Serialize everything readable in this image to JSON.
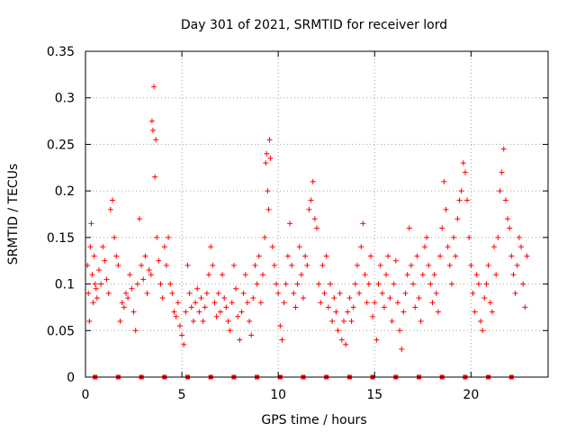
{
  "chart_data": {
    "type": "scatter",
    "title": "Day 301 of 2021, SRMTID for receiver lord",
    "xlabel": "GPS time / hours",
    "ylabel": "SRMTID / TECUs",
    "xlim": [
      0,
      24
    ],
    "ylim": [
      0,
      0.35
    ],
    "x_ticks": [
      0,
      5,
      10,
      15,
      20
    ],
    "x_tick_labels": [
      "0",
      "5",
      "10",
      "15",
      "20"
    ],
    "y_ticks": [
      0,
      0.05,
      0.1,
      0.15,
      0.2,
      0.25,
      0.3,
      0.35
    ],
    "y_tick_labels": [
      "0",
      "0.05",
      "0.1",
      "0.15",
      "0.2",
      "0.25",
      "0.3",
      "0.35"
    ],
    "grid": true,
    "marker": "+",
    "color": "#ff0000",
    "zero_markers_x": [
      0.5,
      1.7,
      2.9,
      4.1,
      5.3,
      6.5,
      7.7,
      8.9,
      10.1,
      11.3,
      12.5,
      13.7,
      14.9,
      16.1,
      17.3,
      18.5,
      19.7,
      20.9,
      22.1
    ],
    "series": [
      {
        "name": "SRMTID",
        "points": [
          [
            0.1,
            0.12
          ],
          [
            0.15,
            0.09
          ],
          [
            0.2,
            0.06
          ],
          [
            0.25,
            0.14
          ],
          [
            0.3,
            0.165
          ],
          [
            0.35,
            0.11
          ],
          [
            0.4,
            0.08
          ],
          [
            0.45,
            0.13
          ],
          [
            0.5,
            0.1
          ],
          [
            0.55,
            0.095
          ],
          [
            0.6,
            0.085
          ],
          [
            0.7,
            0.115
          ],
          [
            0.8,
            0.1
          ],
          [
            0.9,
            0.14
          ],
          [
            1.0,
            0.125
          ],
          [
            1.1,
            0.105
          ],
          [
            1.2,
            0.09
          ],
          [
            1.3,
            0.18
          ],
          [
            1.4,
            0.19
          ],
          [
            1.5,
            0.15
          ],
          [
            1.6,
            0.13
          ],
          [
            1.7,
            0.12
          ],
          [
            1.8,
            0.06
          ],
          [
            1.9,
            0.08
          ],
          [
            2.0,
            0.075
          ],
          [
            2.1,
            0.09
          ],
          [
            2.2,
            0.085
          ],
          [
            2.3,
            0.11
          ],
          [
            2.4,
            0.095
          ],
          [
            2.5,
            0.07
          ],
          [
            2.6,
            0.05
          ],
          [
            2.7,
            0.1
          ],
          [
            2.8,
            0.17
          ],
          [
            2.9,
            0.12
          ],
          [
            3.0,
            0.105
          ],
          [
            3.1,
            0.13
          ],
          [
            3.2,
            0.09
          ],
          [
            3.3,
            0.115
          ],
          [
            3.4,
            0.11
          ],
          [
            3.45,
            0.275
          ],
          [
            3.5,
            0.265
          ],
          [
            3.55,
            0.312
          ],
          [
            3.6,
            0.215
          ],
          [
            3.65,
            0.255
          ],
          [
            3.7,
            0.15
          ],
          [
            3.8,
            0.125
          ],
          [
            3.9,
            0.1
          ],
          [
            4.0,
            0.085
          ],
          [
            4.1,
            0.14
          ],
          [
            4.2,
            0.12
          ],
          [
            4.3,
            0.15
          ],
          [
            4.4,
            0.1
          ],
          [
            4.5,
            0.09
          ],
          [
            4.6,
            0.07
          ],
          [
            4.7,
            0.065
          ],
          [
            4.8,
            0.08
          ],
          [
            4.9,
            0.055
          ],
          [
            5.0,
            0.045
          ],
          [
            5.1,
            0.035
          ],
          [
            5.2,
            0.07
          ],
          [
            5.3,
            0.12
          ],
          [
            5.4,
            0.09
          ],
          [
            5.5,
            0.075
          ],
          [
            5.6,
            0.06
          ],
          [
            5.7,
            0.08
          ],
          [
            5.8,
            0.095
          ],
          [
            5.9,
            0.07
          ],
          [
            6.0,
            0.085
          ],
          [
            6.1,
            0.06
          ],
          [
            6.2,
            0.075
          ],
          [
            6.3,
            0.09
          ],
          [
            6.4,
            0.11
          ],
          [
            6.5,
            0.14
          ],
          [
            6.6,
            0.12
          ],
          [
            6.7,
            0.08
          ],
          [
            6.8,
            0.065
          ],
          [
            6.9,
            0.09
          ],
          [
            7.0,
            0.07
          ],
          [
            7.1,
            0.11
          ],
          [
            7.2,
            0.085
          ],
          [
            7.3,
            0.075
          ],
          [
            7.4,
            0.06
          ],
          [
            7.5,
            0.05
          ],
          [
            7.6,
            0.08
          ],
          [
            7.7,
            0.12
          ],
          [
            7.8,
            0.095
          ],
          [
            7.9,
            0.065
          ],
          [
            8.0,
            0.04
          ],
          [
            8.1,
            0.07
          ],
          [
            8.2,
            0.09
          ],
          [
            8.3,
            0.11
          ],
          [
            8.4,
            0.08
          ],
          [
            8.5,
            0.06
          ],
          [
            8.6,
            0.045
          ],
          [
            8.7,
            0.085
          ],
          [
            8.8,
            0.12
          ],
          [
            8.9,
            0.1
          ],
          [
            9.0,
            0.13
          ],
          [
            9.1,
            0.08
          ],
          [
            9.2,
            0.11
          ],
          [
            9.3,
            0.15
          ],
          [
            9.35,
            0.23
          ],
          [
            9.4,
            0.24
          ],
          [
            9.45,
            0.2
          ],
          [
            9.5,
            0.18
          ],
          [
            9.55,
            0.255
          ],
          [
            9.6,
            0.235
          ],
          [
            9.7,
            0.14
          ],
          [
            9.8,
            0.12
          ],
          [
            9.9,
            0.1
          ],
          [
            10.0,
            0.09
          ],
          [
            10.1,
            0.055
          ],
          [
            10.2,
            0.04
          ],
          [
            10.3,
            0.08
          ],
          [
            10.4,
            0.1
          ],
          [
            10.5,
            0.13
          ],
          [
            10.6,
            0.165
          ],
          [
            10.7,
            0.12
          ],
          [
            10.8,
            0.09
          ],
          [
            10.9,
            0.075
          ],
          [
            11.0,
            0.1
          ],
          [
            11.1,
            0.14
          ],
          [
            11.2,
            0.11
          ],
          [
            11.3,
            0.085
          ],
          [
            11.4,
            0.13
          ],
          [
            11.5,
            0.12
          ],
          [
            11.6,
            0.18
          ],
          [
            11.7,
            0.19
          ],
          [
            11.8,
            0.21
          ],
          [
            11.9,
            0.17
          ],
          [
            12.0,
            0.16
          ],
          [
            12.1,
            0.1
          ],
          [
            12.2,
            0.08
          ],
          [
            12.3,
            0.12
          ],
          [
            12.4,
            0.09
          ],
          [
            12.5,
            0.13
          ],
          [
            12.6,
            0.075
          ],
          [
            12.7,
            0.1
          ],
          [
            12.8,
            0.06
          ],
          [
            12.9,
            0.085
          ],
          [
            13.0,
            0.07
          ],
          [
            13.1,
            0.05
          ],
          [
            13.2,
            0.09
          ],
          [
            13.3,
            0.04
          ],
          [
            13.4,
            0.06
          ],
          [
            13.5,
            0.035
          ],
          [
            13.6,
            0.07
          ],
          [
            13.7,
            0.085
          ],
          [
            13.8,
            0.06
          ],
          [
            13.9,
            0.075
          ],
          [
            14.0,
            0.1
          ],
          [
            14.1,
            0.12
          ],
          [
            14.2,
            0.09
          ],
          [
            14.3,
            0.14
          ],
          [
            14.4,
            0.165
          ],
          [
            14.5,
            0.11
          ],
          [
            14.6,
            0.08
          ],
          [
            14.7,
            0.1
          ],
          [
            14.8,
            0.13
          ],
          [
            14.9,
            0.065
          ],
          [
            15.0,
            0.08
          ],
          [
            15.1,
            0.04
          ],
          [
            15.2,
            0.1
          ],
          [
            15.3,
            0.12
          ],
          [
            15.4,
            0.09
          ],
          [
            15.5,
            0.075
          ],
          [
            15.6,
            0.11
          ],
          [
            15.7,
            0.13
          ],
          [
            15.8,
            0.085
          ],
          [
            15.9,
            0.06
          ],
          [
            16.0,
            0.1
          ],
          [
            16.1,
            0.125
          ],
          [
            16.2,
            0.08
          ],
          [
            16.3,
            0.05
          ],
          [
            16.4,
            0.03
          ],
          [
            16.5,
            0.07
          ],
          [
            16.6,
            0.09
          ],
          [
            16.7,
            0.11
          ],
          [
            16.8,
            0.16
          ],
          [
            16.9,
            0.12
          ],
          [
            17.0,
            0.1
          ],
          [
            17.1,
            0.075
          ],
          [
            17.2,
            0.13
          ],
          [
            17.3,
            0.085
          ],
          [
            17.4,
            0.06
          ],
          [
            17.5,
            0.11
          ],
          [
            17.6,
            0.14
          ],
          [
            17.7,
            0.15
          ],
          [
            17.8,
            0.12
          ],
          [
            17.9,
            0.1
          ],
          [
            18.0,
            0.08
          ],
          [
            18.1,
            0.11
          ],
          [
            18.2,
            0.09
          ],
          [
            18.3,
            0.07
          ],
          [
            18.4,
            0.13
          ],
          [
            18.5,
            0.16
          ],
          [
            18.6,
            0.21
          ],
          [
            18.7,
            0.18
          ],
          [
            18.8,
            0.14
          ],
          [
            18.9,
            0.12
          ],
          [
            19.0,
            0.1
          ],
          [
            19.1,
            0.15
          ],
          [
            19.2,
            0.13
          ],
          [
            19.3,
            0.17
          ],
          [
            19.4,
            0.19
          ],
          [
            19.5,
            0.2
          ],
          [
            19.6,
            0.23
          ],
          [
            19.7,
            0.22
          ],
          [
            19.8,
            0.19
          ],
          [
            19.9,
            0.15
          ],
          [
            20.0,
            0.12
          ],
          [
            20.1,
            0.09
          ],
          [
            20.2,
            0.07
          ],
          [
            20.3,
            0.11
          ],
          [
            20.4,
            0.1
          ],
          [
            20.5,
            0.06
          ],
          [
            20.6,
            0.05
          ],
          [
            20.7,
            0.085
          ],
          [
            20.8,
            0.1
          ],
          [
            20.9,
            0.12
          ],
          [
            21.0,
            0.08
          ],
          [
            21.1,
            0.07
          ],
          [
            21.2,
            0.14
          ],
          [
            21.3,
            0.11
          ],
          [
            21.4,
            0.15
          ],
          [
            21.5,
            0.2
          ],
          [
            21.6,
            0.22
          ],
          [
            21.7,
            0.245
          ],
          [
            21.8,
            0.19
          ],
          [
            21.9,
            0.17
          ],
          [
            22.0,
            0.16
          ],
          [
            22.1,
            0.13
          ],
          [
            22.2,
            0.11
          ],
          [
            22.3,
            0.09
          ],
          [
            22.4,
            0.12
          ],
          [
            22.5,
            0.15
          ],
          [
            22.6,
            0.14
          ],
          [
            22.7,
            0.1
          ],
          [
            22.8,
            0.075
          ],
          [
            22.9,
            0.13
          ]
        ]
      }
    ]
  }
}
